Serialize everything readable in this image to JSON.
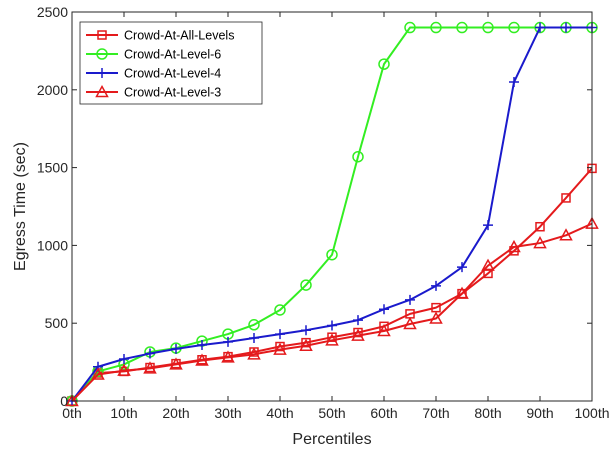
{
  "chart_data": {
    "type": "line",
    "title": "",
    "xlabel": "Percentiles",
    "ylabel": "Egress Time (sec)",
    "x": [
      0,
      5,
      10,
      15,
      20,
      25,
      30,
      35,
      40,
      45,
      50,
      55,
      60,
      65,
      70,
      75,
      80,
      85,
      90,
      95,
      100
    ],
    "xticks": [
      0,
      10,
      20,
      30,
      40,
      50,
      60,
      70,
      80,
      90,
      100
    ],
    "xtick_labels": [
      "0th",
      "10th",
      "20th",
      "30th",
      "40th",
      "50th",
      "60th",
      "70th",
      "80th",
      "90th",
      "100th"
    ],
    "xlim": [
      0,
      100
    ],
    "yticks": [
      0,
      500,
      1000,
      1500,
      2000,
      2500
    ],
    "ytick_labels": [
      "0",
      "500",
      "1000",
      "1500",
      "2000",
      "2500"
    ],
    "ylim": [
      0,
      2500
    ],
    "grid": false,
    "legend_position": "top-left",
    "series": [
      {
        "name": "Crowd-At-All-Levels",
        "color": "#e41a1c",
        "marker": "square",
        "values": [
          0,
          180,
          190,
          215,
          240,
          265,
          285,
          315,
          350,
          375,
          410,
          440,
          480,
          560,
          600,
          690,
          820,
          965,
          1120,
          1305,
          1495
        ]
      },
      {
        "name": "Crowd-At-Level-6",
        "color": "#33ee22",
        "marker": "circle",
        "values": [
          0,
          190,
          235,
          315,
          340,
          385,
          430,
          490,
          585,
          745,
          940,
          1570,
          2165,
          2400,
          2400,
          2400,
          2400,
          2400,
          2400,
          2400,
          2400
        ]
      },
      {
        "name": "Crowd-At-Level-4",
        "color": "#1a1acc",
        "marker": "plus",
        "values": [
          0,
          220,
          270,
          305,
          335,
          360,
          380,
          405,
          430,
          455,
          485,
          520,
          590,
          650,
          740,
          860,
          1130,
          2050,
          2400,
          2400,
          2400
        ]
      },
      {
        "name": "Crowd-At-Level-3",
        "color": "#e41a1c",
        "marker": "triangle",
        "values": [
          0,
          170,
          195,
          210,
          235,
          260,
          280,
          300,
          330,
          355,
          390,
          420,
          450,
          495,
          530,
          690,
          870,
          990,
          1015,
          1065,
          1140
        ]
      }
    ]
  }
}
